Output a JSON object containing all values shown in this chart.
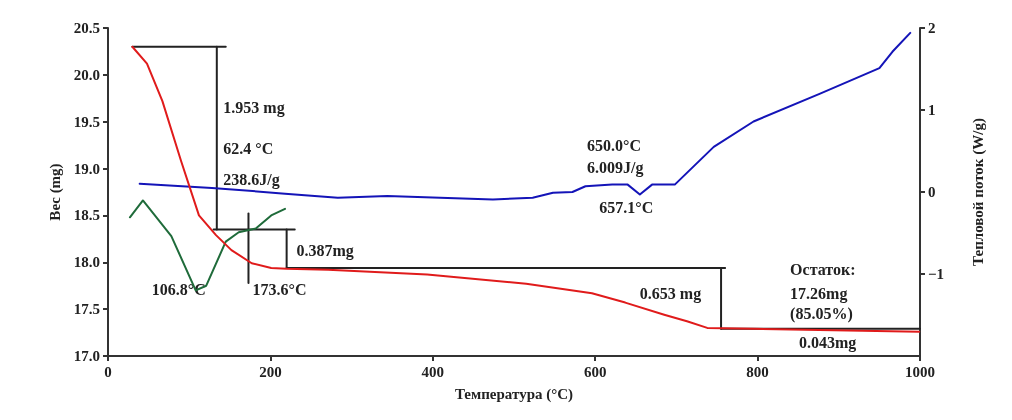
{
  "chart_data": {
    "type": "line",
    "xlabel": "Температура (°C)",
    "ylabel": "Вес (mg)",
    "y2label": "Тепловой поток (W/g)",
    "xlim": [
      0,
      1000
    ],
    "xticks": [
      0,
      200,
      400,
      600,
      800,
      1000
    ],
    "ylim": [
      17,
      20.5
    ],
    "yticks": [
      {
        "value": 17,
        "label": "17.0"
      },
      17.5,
      {
        "value": 18,
        "label": "18.0"
      },
      18.5,
      {
        "value": 19,
        "label": "19.0"
      },
      19.5,
      {
        "value": 20,
        "label": "20.0"
      },
      20.5
    ],
    "y2lim": [
      -2,
      2
    ],
    "y2ticks": [
      {
        "value": -1,
        "label": "−1"
      },
      0,
      1,
      2
    ],
    "series": [
      {
        "color": "#e01b1b",
        "x": [
          30,
          48,
          67,
          90,
          112,
          133,
          152,
          177,
          201,
          220,
          271,
          393,
          515,
          596,
          637,
          685,
          713,
          738,
          795,
          999
        ],
        "values": [
          20.3,
          20.12,
          19.72,
          19.08,
          18.5,
          18.29,
          18.13,
          17.99,
          17.94,
          17.93,
          17.92,
          17.87,
          17.77,
          17.67,
          17.57,
          17.44,
          17.37,
          17.3,
          17.29,
          17.26
        ]
      },
      {
        "color": "#1414b8",
        "axis": "y2",
        "x": [
          39,
          128,
          218,
          283,
          344,
          474,
          523,
          548,
          572,
          588,
          621,
          640,
          655,
          670,
          698,
          746,
          795,
          877,
          950,
          966,
          988
        ],
        "values": [
          0.1,
          0.05,
          -0.02,
          -0.07,
          -0.05,
          -0.09,
          -0.07,
          -0.01,
          0,
          0.07,
          0.09,
          0.09,
          -0.03,
          0.09,
          0.09,
          0.55,
          0.86,
          1.2,
          1.51,
          1.71,
          1.94
        ]
      },
      {
        "color": "#1f6b3a",
        "x": [
          27,
          43,
          78,
          108,
          121,
          145,
          161,
          182,
          201,
          218
        ],
        "values": [
          18.48,
          18.66,
          18.28,
          17.7,
          17.75,
          18.22,
          18.32,
          18.36,
          18.5,
          18.57
        ]
      },
      {
        "color": "#222222",
        "x": [
          30,
          145
        ],
        "values": [
          20.3,
          20.3
        ]
      },
      {
        "color": "#222222",
        "x": [
          134,
          134
        ],
        "values": [
          20.3,
          18.35
        ]
      },
      {
        "color": "#222222",
        "x": [
          130,
          230
        ],
        "values": [
          18.35,
          18.35
        ]
      },
      {
        "color": "#222222",
        "x": [
          220,
          220
        ],
        "values": [
          18.35,
          17.94
        ]
      },
      {
        "color": "#222222",
        "x": [
          220,
          760
        ],
        "values": [
          17.94,
          17.94
        ]
      },
      {
        "color": "#222222",
        "x": [
          173,
          173
        ],
        "values": [
          17.78,
          18.52
        ]
      },
      {
        "color": "#222222",
        "x": [
          755,
          755
        ],
        "values": [
          17.94,
          17.29
        ]
      },
      {
        "color": "#222222",
        "x": [
          755,
          1000
        ],
        "values": [
          17.29,
          17.29
        ]
      }
    ],
    "annotations": [
      "1.953 mg",
      "62.4 °C",
      "238.6J/g",
      "0.387mg",
      "106.8°C",
      "173.6°C",
      "650.0°C",
      "6.009J/g",
      "657.1°C",
      "0.653 mg",
      "Остаток:",
      "17.26mg",
      "(85.05%)",
      "0.043mg"
    ]
  }
}
